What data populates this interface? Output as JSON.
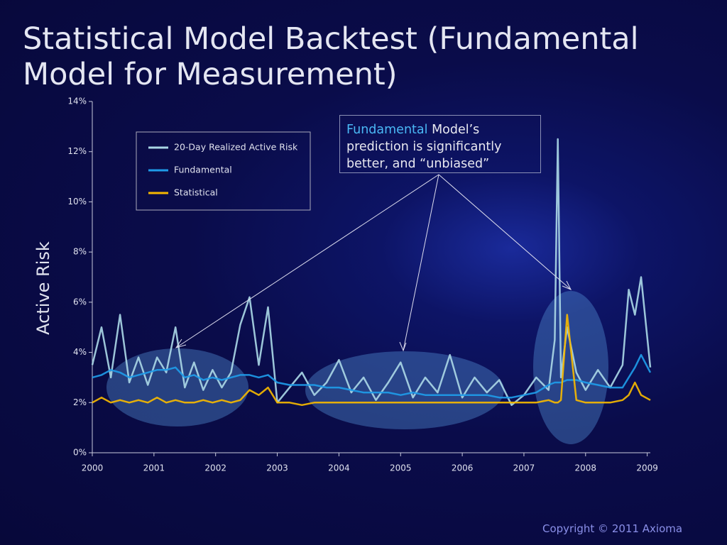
{
  "chart_data": {
    "type": "line",
    "title": "Statistical Model Backtest (Fundamental Model for Measurement)",
    "y_label": "Active Risk",
    "annotation_highlight": "Fundamental",
    "annotation": "Model’s prediction is significantly better, and “unbiased”",
    "footer": "Copyright © 2011 Axioma",
    "x": [
      2000,
      2000.15,
      2000.3,
      2000.45,
      2000.6,
      2000.75,
      2000.9,
      2001.05,
      2001.2,
      2001.35,
      2001.5,
      2001.65,
      2001.8,
      2001.95,
      2002.1,
      2002.25,
      2002.4,
      2002.55,
      2002.7,
      2002.85,
      2003.0,
      2003.2,
      2003.4,
      2003.6,
      2003.8,
      2004.0,
      2004.2,
      2004.4,
      2004.6,
      2004.8,
      2005.0,
      2005.2,
      2005.4,
      2005.6,
      2005.8,
      2006.0,
      2006.2,
      2006.4,
      2006.6,
      2006.8,
      2007.0,
      2007.2,
      2007.4,
      2007.5,
      2007.55,
      2007.6,
      2007.7,
      2007.85,
      2008.0,
      2008.2,
      2008.4,
      2008.6,
      2008.7,
      2008.8,
      2008.9,
      2009.05
    ],
    "series": [
      {
        "name": "20-Day Realized Active Risk",
        "color": "#a9d6e5",
        "values": [
          3.5,
          5.0,
          3.0,
          5.5,
          2.8,
          3.8,
          2.7,
          3.8,
          3.2,
          5.0,
          2.6,
          3.6,
          2.5,
          3.3,
          2.6,
          3.2,
          5.1,
          6.2,
          3.5,
          5.8,
          2.0,
          2.6,
          3.2,
          2.3,
          2.8,
          3.7,
          2.4,
          3.0,
          2.1,
          2.8,
          3.6,
          2.2,
          3.0,
          2.4,
          3.9,
          2.2,
          3.0,
          2.4,
          2.9,
          1.9,
          2.3,
          3.0,
          2.5,
          4.5,
          12.5,
          3.0,
          5.0,
          3.2,
          2.5,
          3.3,
          2.6,
          3.5,
          6.5,
          5.5,
          7.0,
          3.4
        ]
      },
      {
        "name": "Fundamental",
        "color": "#1e9be8",
        "values": [
          3.0,
          3.1,
          3.3,
          3.2,
          3.0,
          3.1,
          3.2,
          3.3,
          3.3,
          3.4,
          3.0,
          3.1,
          2.9,
          3.0,
          2.9,
          3.0,
          3.1,
          3.1,
          3.0,
          3.1,
          2.8,
          2.7,
          2.7,
          2.7,
          2.6,
          2.6,
          2.5,
          2.4,
          2.4,
          2.4,
          2.3,
          2.4,
          2.3,
          2.3,
          2.3,
          2.3,
          2.3,
          2.3,
          2.2,
          2.2,
          2.3,
          2.4,
          2.7,
          2.8,
          2.8,
          2.8,
          2.9,
          2.9,
          2.8,
          2.7,
          2.6,
          2.6,
          3.0,
          3.4,
          3.9,
          3.2
        ]
      },
      {
        "name": "Statistical",
        "color": "#f5b800",
        "values": [
          2.0,
          2.2,
          2.0,
          2.1,
          2.0,
          2.1,
          2.0,
          2.2,
          2.0,
          2.1,
          2.0,
          2.0,
          2.1,
          2.0,
          2.1,
          2.0,
          2.1,
          2.5,
          2.3,
          2.6,
          2.0,
          2.0,
          1.9,
          2.0,
          2.0,
          2.0,
          2.0,
          2.0,
          2.0,
          2.0,
          2.0,
          2.0,
          2.0,
          2.0,
          2.0,
          2.0,
          2.0,
          2.0,
          2.0,
          2.0,
          2.0,
          2.0,
          2.1,
          2.0,
          2.0,
          2.1,
          5.5,
          2.1,
          2.0,
          2.0,
          2.0,
          2.1,
          2.3,
          2.8,
          2.3,
          2.1
        ]
      }
    ],
    "xlim": [
      2000,
      2009.05
    ],
    "xticks": [
      2000,
      2001,
      2002,
      2003,
      2004,
      2005,
      2006,
      2007,
      2008,
      2009
    ],
    "ylim": [
      0,
      14
    ],
    "yticks": [
      {
        "value": 0,
        "label": "0%"
      },
      {
        "value": 2,
        "label": "2%"
      },
      {
        "value": 4,
        "label": "4%"
      },
      {
        "value": 6,
        "label": "6%"
      },
      {
        "value": 8,
        "label": "8%"
      },
      {
        "value": 10,
        "label": "10%"
      },
      {
        "value": 12,
        "label": "12%"
      },
      {
        "value": 14,
        "label": "14%"
      }
    ],
    "grid": false,
    "legend": "upper left"
  }
}
